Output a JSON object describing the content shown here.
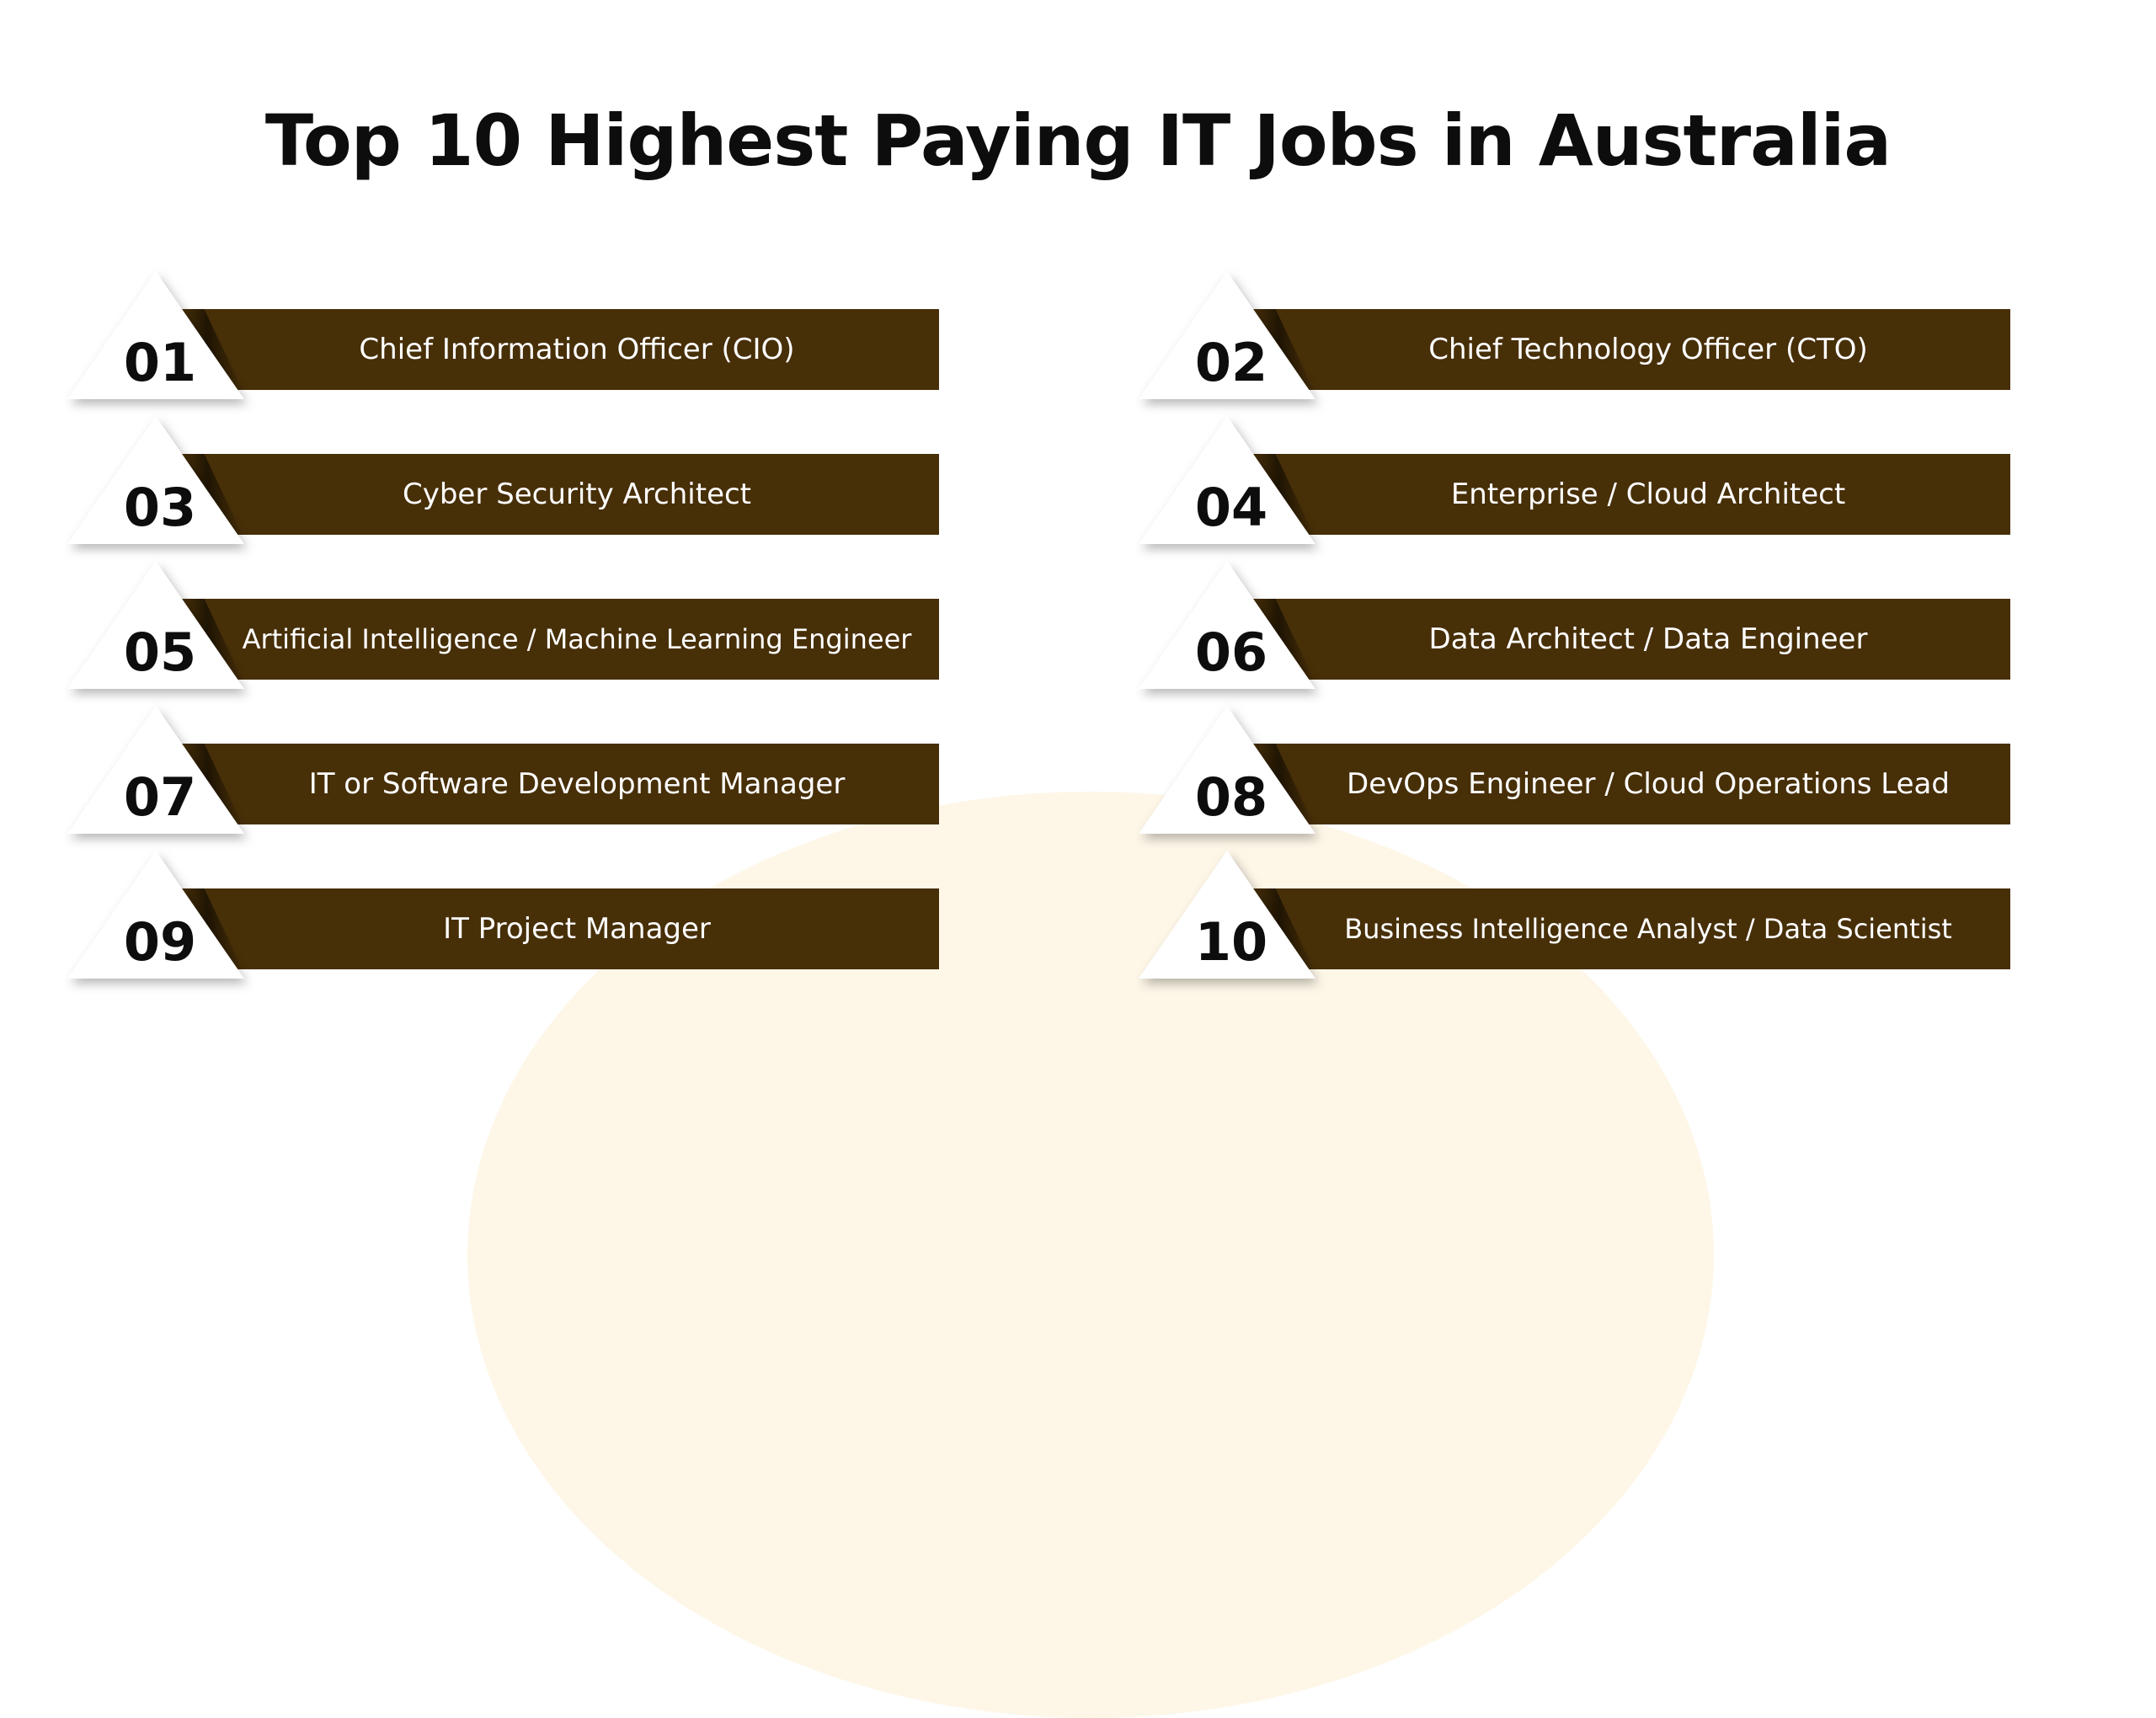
{
  "title": "Top 10 Highest Paying IT Jobs in Australia",
  "colors": {
    "bar": "#472f08",
    "background_blob": "#fef7e8",
    "text_dark": "#0d0d0d",
    "text_light": "#ffffff"
  },
  "jobs": [
    {
      "number": "01",
      "title": "Chief Information Officer (CIO)"
    },
    {
      "number": "02",
      "title": "Chief Technology Officer (CTO)"
    },
    {
      "number": "03",
      "title": "Cyber Security Architect"
    },
    {
      "number": "04",
      "title": "Enterprise / Cloud Architect"
    },
    {
      "number": "05",
      "title": "Artificial Intelligence / Machine Learning Engineer"
    },
    {
      "number": "06",
      "title": "Data Architect / Data Engineer"
    },
    {
      "number": "07",
      "title": "IT or Software Development Manager"
    },
    {
      "number": "08",
      "title": "DevOps Engineer / Cloud Operations Lead"
    },
    {
      "number": "09",
      "title": "IT Project Manager"
    },
    {
      "number": "10",
      "title": "Business Intelligence Analyst / Data Scientist"
    }
  ]
}
